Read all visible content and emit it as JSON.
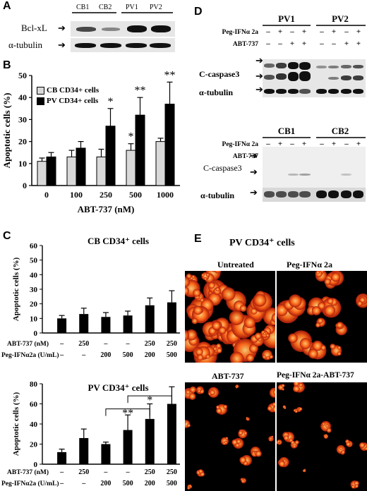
{
  "panelA": {
    "letter": "A",
    "lanes": [
      "CB1",
      "CB2",
      "PV1",
      "PV2"
    ],
    "rows": [
      "Bcl-xL",
      "α-tubulin"
    ]
  },
  "panelB": {
    "letter": "B",
    "legend": [
      "CB CD34+ cells",
      "PV CD34+ cells"
    ],
    "chart_data": {
      "type": "bar",
      "categories": [
        "0",
        "100",
        "250",
        "500",
        "1000"
      ],
      "series": [
        {
          "name": "CB CD34+ cells",
          "values": [
            11,
            13,
            13,
            16,
            20
          ],
          "errors": [
            1.5,
            3,
            3.5,
            3,
            1.5
          ],
          "color": "#d9d9d9"
        },
        {
          "name": "PV CD34+ cells",
          "values": [
            13,
            17,
            27,
            32,
            37
          ],
          "errors": [
            2,
            3,
            8,
            8,
            10
          ],
          "color": "#000000"
        }
      ],
      "significance": [
        {
          "category": "250",
          "series": 1,
          "mark": "*"
        },
        {
          "category": "500",
          "series": 0,
          "mark": "*"
        },
        {
          "category": "500",
          "series": 1,
          "mark": "**"
        },
        {
          "category": "1000",
          "series": 1,
          "mark": "**"
        }
      ],
      "xlabel": "ABT-737 (nM)",
      "ylabel": "Apoptotic cells (%)",
      "ylim": [
        0,
        50
      ],
      "yticks": [
        0,
        10,
        20,
        30,
        40,
        50
      ]
    }
  },
  "panelC": {
    "letter": "C",
    "row_labels": [
      "ABT-737 (nM)",
      "Peg-IFNα2a (U/mL)"
    ],
    "abt_values": [
      "–",
      "250",
      "–",
      "–",
      "250",
      "250"
    ],
    "ifn_values": [
      "–",
      "–",
      "200",
      "500",
      "200",
      "500"
    ],
    "chart_data": [
      {
        "type": "bar",
        "title": "CB CD34⁺ cells",
        "categories": [
          "1",
          "2",
          "3",
          "4",
          "5",
          "6"
        ],
        "values": [
          10,
          13,
          11,
          12,
          19,
          21
        ],
        "errors": [
          2,
          4,
          3,
          3,
          5,
          8
        ],
        "ylabel": "Apoptotic cells (%)",
        "ylim": [
          0,
          60
        ],
        "yticks": [
          0,
          10,
          20,
          30,
          40,
          50,
          60
        ]
      },
      {
        "type": "bar",
        "title": "PV CD34⁺ cells",
        "categories": [
          "1",
          "2",
          "3",
          "4",
          "5",
          "6"
        ],
        "values": [
          12,
          26,
          20,
          34,
          45,
          60
        ],
        "errors": [
          3,
          9,
          2,
          15,
          15,
          17
        ],
        "ylabel": "Apoptotic cells (%)",
        "ylim": [
          0,
          80
        ],
        "yticks": [
          0,
          20,
          40,
          60,
          80
        ],
        "significance": [
          {
            "from": 3,
            "to": 5,
            "mark": "**"
          },
          {
            "from": 4,
            "to": 6,
            "mark": "*"
          }
        ]
      }
    ]
  },
  "panelD": {
    "letter": "D",
    "top_groups": [
      "PV1",
      "PV2"
    ],
    "bottom_groups": [
      "CB1",
      "CB2"
    ],
    "treat_labels": [
      "Peg-IFNα 2a",
      "ABT-737"
    ],
    "ifn_signs": [
      "–",
      "+",
      "–",
      "+"
    ],
    "abt_signs": [
      "–",
      "–",
      "+",
      "+"
    ],
    "rows": [
      "C-caspase3",
      "α-tubulin"
    ]
  },
  "panelE": {
    "letter": "E",
    "title": "PV CD34⁺ cells",
    "images": [
      "Untreated",
      "Peg-IFNα 2a",
      "ABT-737",
      "Peg-IFNα 2a-ABT-737"
    ]
  }
}
